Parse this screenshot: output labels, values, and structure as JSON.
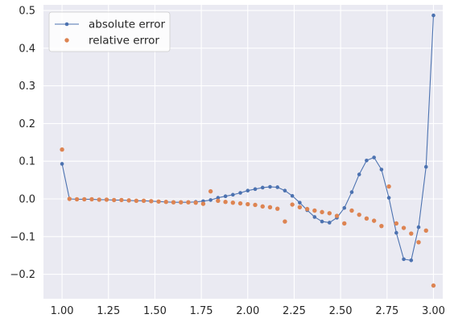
{
  "chart_data": {
    "type": "line",
    "title": "",
    "xlabel": "",
    "ylabel": "",
    "xlim": [
      0.9,
      3.05
    ],
    "ylim": [
      -0.265,
      0.515
    ],
    "grid": true,
    "legend_position": "top-left",
    "xticks": [
      1.0,
      1.25,
      1.5,
      1.75,
      2.0,
      2.25,
      2.5,
      2.75,
      3.0
    ],
    "xtick_labels": [
      "1.00",
      "1.25",
      "1.50",
      "1.75",
      "2.00",
      "2.25",
      "2.50",
      "2.75",
      "3.00"
    ],
    "yticks": [
      -0.2,
      -0.1,
      0.0,
      0.1,
      0.2,
      0.3,
      0.4,
      0.5
    ],
    "ytick_labels": [
      "−0.2",
      "−0.1",
      "0.0",
      "0.1",
      "0.2",
      "0.3",
      "0.4",
      "0.5"
    ],
    "series": [
      {
        "name": "absolute error",
        "style": "line-with-markers",
        "color": "#4c72b0",
        "x": [
          1.0,
          1.04,
          1.08,
          1.12,
          1.16,
          1.2,
          1.24,
          1.28,
          1.32,
          1.36,
          1.4,
          1.44,
          1.48,
          1.52,
          1.56,
          1.6,
          1.64,
          1.68,
          1.72,
          1.76,
          1.8,
          1.84,
          1.88,
          1.92,
          1.96,
          2.0,
          2.04,
          2.08,
          2.12,
          2.16,
          2.2,
          2.24,
          2.28,
          2.32,
          2.36,
          2.4,
          2.44,
          2.48,
          2.52,
          2.56,
          2.6,
          2.64,
          2.68,
          2.72,
          2.76,
          2.8,
          2.84,
          2.88,
          2.92,
          2.96,
          3.0
        ],
        "y": [
          0.093,
          0.0,
          -0.001,
          -0.001,
          -0.001,
          -0.002,
          -0.002,
          -0.003,
          -0.003,
          -0.004,
          -0.005,
          -0.005,
          -0.006,
          -0.007,
          -0.008,
          -0.009,
          -0.009,
          -0.009,
          -0.008,
          -0.006,
          -0.003,
          0.003,
          0.007,
          0.011,
          0.016,
          0.022,
          0.026,
          0.03,
          0.032,
          0.031,
          0.022,
          0.008,
          -0.01,
          -0.03,
          -0.048,
          -0.06,
          -0.063,
          -0.05,
          -0.024,
          0.018,
          0.065,
          0.102,
          0.11,
          0.078,
          0.003,
          -0.09,
          -0.16,
          -0.163,
          -0.075,
          0.085,
          0.487
        ]
      },
      {
        "name": "relative error",
        "style": "markers",
        "color": "#dd8452",
        "x": [
          1.0,
          1.04,
          1.08,
          1.12,
          1.16,
          1.2,
          1.24,
          1.28,
          1.32,
          1.36,
          1.4,
          1.44,
          1.48,
          1.52,
          1.56,
          1.6,
          1.64,
          1.68,
          1.72,
          1.76,
          1.8,
          1.84,
          1.88,
          1.92,
          1.96,
          2.0,
          2.04,
          2.08,
          2.12,
          2.16,
          2.2,
          2.24,
          2.28,
          2.32,
          2.36,
          2.4,
          2.44,
          2.48,
          2.52,
          2.56,
          2.6,
          2.64,
          2.68,
          2.72,
          2.76,
          2.8,
          2.84,
          2.88,
          2.92,
          2.96,
          3.0
        ],
        "y": [
          0.131,
          0.0,
          -0.001,
          -0.001,
          -0.001,
          -0.002,
          -0.002,
          -0.003,
          -0.003,
          -0.004,
          -0.005,
          -0.005,
          -0.006,
          -0.007,
          -0.008,
          -0.009,
          -0.009,
          -0.009,
          -0.01,
          -0.013,
          0.02,
          -0.005,
          -0.008,
          -0.01,
          -0.012,
          -0.014,
          -0.016,
          -0.02,
          -0.022,
          -0.026,
          -0.06,
          -0.015,
          -0.022,
          -0.027,
          -0.031,
          -0.035,
          -0.038,
          -0.045,
          -0.065,
          -0.031,
          -0.042,
          -0.052,
          -0.058,
          -0.072,
          0.033,
          -0.065,
          -0.077,
          -0.092,
          -0.115,
          -0.084,
          -0.23
        ]
      }
    ]
  },
  "colors": {
    "plot_background": "#eaeaf2",
    "grid": "#ffffff",
    "series_1": "#4c72b0",
    "series_2": "#dd8452",
    "legend_edge": "#cccccc"
  }
}
